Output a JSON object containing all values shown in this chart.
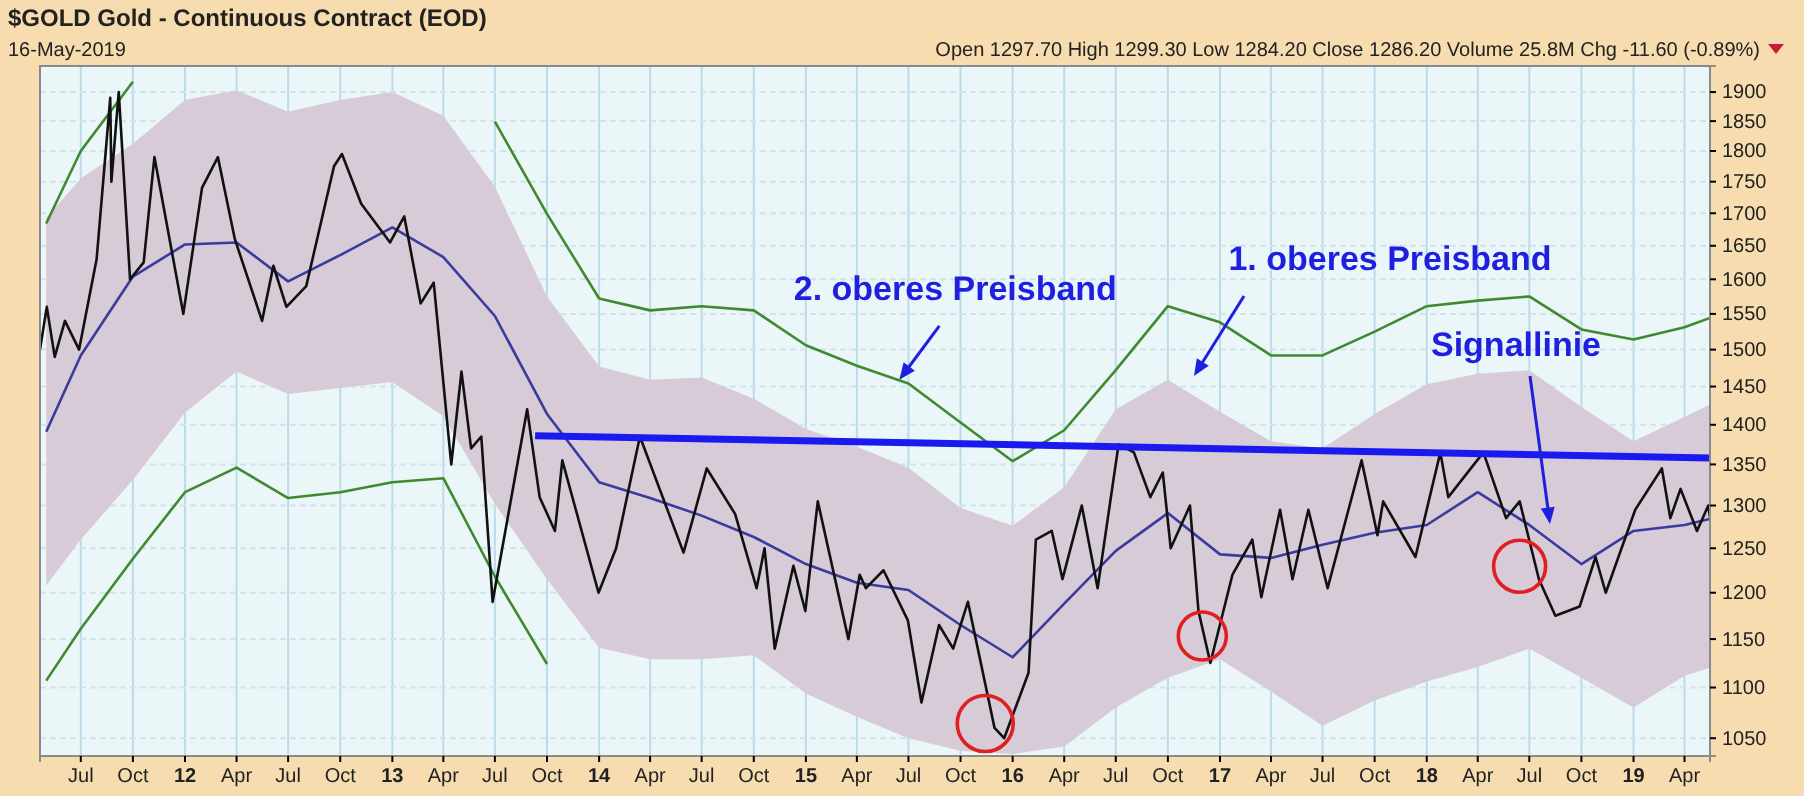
{
  "chart_data": {
    "type": "line",
    "title": "$GOLD Gold - Continuous Contract (EOD)",
    "subtitle": "16-May-2019",
    "log": "y",
    "grid": true,
    "marker": "none",
    "line_style": "solid",
    "xlim": [
      "2011-04-20",
      "2019-05-16"
    ],
    "ylim": [
      1033,
      1946
    ],
    "yticks": [
      1050,
      1100,
      1150,
      1200,
      1250,
      1300,
      1350,
      1400,
      1450,
      1500,
      1550,
      1600,
      1650,
      1700,
      1750,
      1800,
      1850,
      1900
    ],
    "xticks": [
      {
        "value": "2011-07-01",
        "label": "Jul"
      },
      {
        "value": "2011-10-01",
        "label": "Oct"
      },
      {
        "value": "2012-01-01",
        "label": "12"
      },
      {
        "value": "2012-04-01",
        "label": "Apr"
      },
      {
        "value": "2012-07-01",
        "label": "Jul"
      },
      {
        "value": "2012-10-01",
        "label": "Oct"
      },
      {
        "value": "2013-01-01",
        "label": "13"
      },
      {
        "value": "2013-04-01",
        "label": "Apr"
      },
      {
        "value": "2013-07-01",
        "label": "Jul"
      },
      {
        "value": "2013-10-01",
        "label": "Oct"
      },
      {
        "value": "2014-01-01",
        "label": "14"
      },
      {
        "value": "2014-04-01",
        "label": "Apr"
      },
      {
        "value": "2014-07-01",
        "label": "Jul"
      },
      {
        "value": "2014-10-01",
        "label": "Oct"
      },
      {
        "value": "2015-01-01",
        "label": "15"
      },
      {
        "value": "2015-04-01",
        "label": "Apr"
      },
      {
        "value": "2015-07-01",
        "label": "Jul"
      },
      {
        "value": "2015-10-01",
        "label": "Oct"
      },
      {
        "value": "2016-01-01",
        "label": "16"
      },
      {
        "value": "2016-04-01",
        "label": "Apr"
      },
      {
        "value": "2016-07-01",
        "label": "Jul"
      },
      {
        "value": "2016-10-01",
        "label": "Oct"
      },
      {
        "value": "2017-01-01",
        "label": "17"
      },
      {
        "value": "2017-04-01",
        "label": "Apr"
      },
      {
        "value": "2017-07-01",
        "label": "Jul"
      },
      {
        "value": "2017-10-01",
        "label": "Oct"
      },
      {
        "value": "2018-01-01",
        "label": "18"
      },
      {
        "value": "2018-04-01",
        "label": "Apr"
      },
      {
        "value": "2018-07-01",
        "label": "Jul"
      },
      {
        "value": "2018-10-01",
        "label": "Oct"
      },
      {
        "value": "2019-01-01",
        "label": "19"
      },
      {
        "value": "2019-04-01",
        "label": "Apr"
      }
    ],
    "series": [
      {
        "color": "#3b3b9e",
        "x": [
          "2011-05-01",
          "2011-07-01",
          "2011-10-01",
          "2012-01-01",
          "2012-04-01",
          "2012-07-01",
          "2012-10-01",
          "2013-01-01",
          "2013-04-01",
          "2013-07-01",
          "2013-10-01",
          "2014-01-01",
          "2014-04-01",
          "2014-07-01",
          "2014-10-01",
          "2015-01-01",
          "2015-04-01",
          "2015-07-01",
          "2015-10-01",
          "2016-01-01",
          "2016-04-01",
          "2016-07-01",
          "2016-10-01",
          "2017-01-01",
          "2017-04-01",
          "2017-07-01",
          "2017-10-01",
          "2018-01-01",
          "2018-04-01",
          "2018-07-01",
          "2018-10-01",
          "2019-01-01",
          "2019-04-01",
          "2019-05-15"
        ],
        "values": [
          1391,
          1492,
          1604,
          1652,
          1655,
          1597,
          1636,
          1678,
          1633,
          1547,
          1414,
          1328,
          1309,
          1288,
          1263,
          1232,
          1211,
          1203,
          1165,
          1131,
          1188,
          1247,
          1291,
          1243,
          1239,
          1254,
          1268,
          1277,
          1316,
          1277,
          1232,
          1270,
          1277,
          1284
        ],
        "upper": [
          1693,
          1755,
          1812,
          1886,
          1903,
          1866,
          1886,
          1900,
          1859,
          1742,
          1575,
          1477,
          1459,
          1462,
          1434,
          1395,
          1372,
          1346,
          1297,
          1276,
          1322,
          1420,
          1459,
          1417,
          1379,
          1370,
          1414,
          1453,
          1467,
          1472,
          1423,
          1379,
          1410,
          1426
        ],
        "lower": [
          1208,
          1260,
          1331,
          1416,
          1470,
          1440,
          1448,
          1456,
          1411,
          1302,
          1215,
          1141,
          1129,
          1129,
          1133,
          1094,
          1071,
          1050,
          1038,
          1035,
          1042,
          1080,
          1110,
          1129,
          1096,
          1062,
          1087,
          1106,
          1121,
          1140,
          1110,
          1080,
          1112,
          1120
        ]
      },
      {
        "color": "#3f8a2f",
        "x": [
          "2011-05-01",
          "2011-07-01",
          "2011-10-01",
          "2012-01-01",
          "2012-04-01",
          "2012-07-01",
          "2012-10-01",
          "2013-01-01",
          "2013-04-01",
          "2013-07-01",
          "2013-10-01",
          "2014-01-01",
          "2014-04-01",
          "2014-07-01",
          "2014-10-01",
          "2015-01-01",
          "2015-04-01",
          "2015-07-01",
          "2015-10-01",
          "2016-01-01",
          "2016-04-01",
          "2016-07-01",
          "2016-10-01",
          "2017-01-01",
          "2017-04-01",
          "2017-07-01",
          "2017-10-01",
          "2018-01-01",
          "2018-04-01",
          "2018-07-01",
          "2018-10-01",
          "2019-01-01",
          "2019-04-01",
          "2019-05-15"
        ],
        "values": [
          1684,
          1800,
          1918,
          null,
          null,
          null,
          null,
          null,
          null,
          1849,
          1699,
          1572,
          1555,
          1561,
          1555,
          1506,
          1478,
          1454,
          1403,
          1354,
          1393,
          1472,
          1561,
          1538,
          1492,
          1492,
          1525,
          1561,
          1569,
          1575,
          1528,
          1514,
          1531,
          1544
        ]
      },
      {
        "color": "#3f8a2f",
        "x": [
          "2011-05-01",
          "2011-07-01",
          "2011-10-01",
          "2012-01-01",
          "2012-04-01",
          "2012-07-01",
          "2012-10-01",
          "2013-01-01",
          "2013-04-01",
          "2013-07-01",
          "2013-10-01"
        ],
        "values": [
          1107,
          1161,
          1238,
          1316,
          1346,
          1309,
          1316,
          1328,
          1333,
          1218,
          1124
        ]
      },
      {
        "color": "#111111",
        "x": [
          "2011-04-20",
          "2011-05-02",
          "2011-05-16",
          "2011-06-03",
          "2011-06-28",
          "2011-07-29",
          "2011-08-22",
          "2011-08-24",
          "2011-09-06",
          "2011-09-26",
          "2011-10-20",
          "2011-11-08",
          "2011-12-29",
          "2012-01-31",
          "2012-02-28",
          "2012-03-29",
          "2012-05-16",
          "2012-06-05",
          "2012-06-28",
          "2012-08-02",
          "2012-09-20",
          "2012-10-04",
          "2012-11-07",
          "2012-12-28",
          "2013-01-22",
          "2013-02-20",
          "2013-03-15",
          "2013-04-15",
          "2013-05-03",
          "2013-05-20",
          "2013-06-07",
          "2013-06-27",
          "2013-08-27",
          "2013-09-18",
          "2013-10-15",
          "2013-10-28",
          "2013-12-31",
          "2014-01-31",
          "2014-03-14",
          "2014-05-30",
          "2014-07-10",
          "2014-08-29",
          "2014-10-06",
          "2014-10-20",
          "2014-11-07",
          "2014-12-10",
          "2014-12-31",
          "2015-01-22",
          "2015-03-17",
          "2015-04-06",
          "2015-04-17",
          "2015-05-18",
          "2015-06-30",
          "2015-07-24",
          "2015-08-24",
          "2015-09-18",
          "2015-10-14",
          "2015-11-30",
          "2015-12-17",
          "2016-01-29",
          "2016-02-11",
          "2016-03-10",
          "2016-03-29",
          "2016-05-02",
          "2016-05-30",
          "2016-07-06",
          "2016-08-02",
          "2016-08-31",
          "2016-09-22",
          "2016-10-06",
          "2016-11-09",
          "2016-11-24",
          "2016-12-15",
          "2017-01-23",
          "2017-02-27",
          "2017-03-15",
          "2017-04-17",
          "2017-05-09",
          "2017-06-06",
          "2017-07-10",
          "2017-09-08",
          "2017-10-06",
          "2017-10-16",
          "2017-12-12",
          "2018-01-25",
          "2018-02-08",
          "2018-04-11",
          "2018-05-21",
          "2018-06-14",
          "2018-07-18",
          "2018-08-16",
          "2018-09-28",
          "2018-10-26",
          "2018-11-13",
          "2019-01-04",
          "2019-02-20",
          "2019-03-07",
          "2019-03-25",
          "2019-04-23",
          "2019-05-13",
          "2019-05-16"
        ],
        "values": [
          1500,
          1560,
          1490,
          1540,
          1500,
          1630,
          1890,
          1750,
          1900,
          1600,
          1625,
          1790,
          1550,
          1740,
          1790,
          1660,
          1540,
          1620,
          1560,
          1590,
          1775,
          1795,
          1715,
          1655,
          1695,
          1565,
          1595,
          1350,
          1470,
          1370,
          1385,
          1190,
          1420,
          1310,
          1270,
          1355,
          1200,
          1250,
          1385,
          1245,
          1345,
          1290,
          1205,
          1250,
          1140,
          1230,
          1180,
          1305,
          1150,
          1220,
          1205,
          1225,
          1170,
          1085,
          1165,
          1140,
          1190,
          1060,
          1050,
          1115,
          1260,
          1270,
          1215,
          1300,
          1205,
          1375,
          1365,
          1310,
          1340,
          1250,
          1300,
          1180,
          1125,
          1220,
          1260,
          1195,
          1295,
          1215,
          1295,
          1205,
          1355,
          1265,
          1305,
          1240,
          1365,
          1310,
          1365,
          1285,
          1305,
          1215,
          1175,
          1185,
          1240,
          1200,
          1295,
          1345,
          1285,
          1320,
          1270,
          1300,
          1286
        ]
      },
      {
        "color": "#1a1aee",
        "x": [
          "2013-09-10",
          "2019-05-16"
        ],
        "values": [
          1386,
          1358
        ]
      }
    ],
    "annotations": [
      "Open 1297.70 High 1299.30 Low 1284.20 Close 1286.20 Volume 25.8M Chg -11.60 (-0.89%)",
      {
        "text": "2. oberes Preisband",
        "x": "2015-06-15",
        "y": 1459
      },
      "1. oberes Preisband",
      "Signallinie"
    ]
  }
}
